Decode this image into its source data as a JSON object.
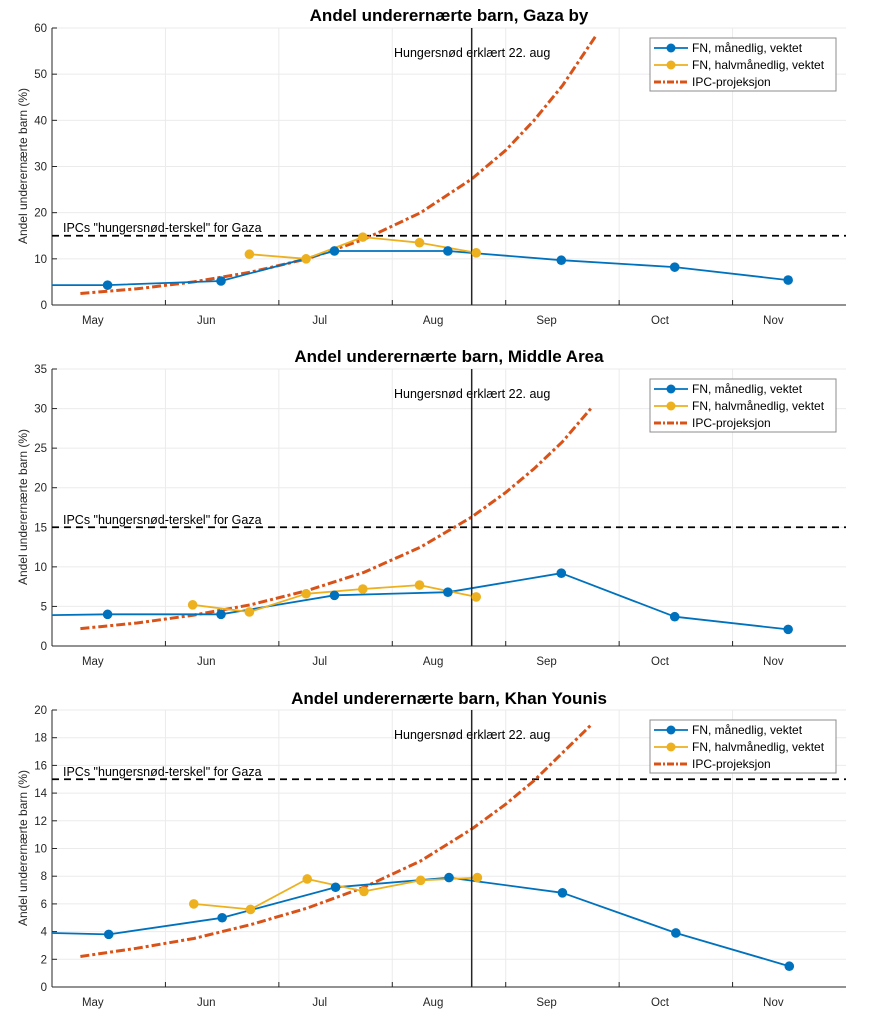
{
  "figure": {
    "xaxis_months": [
      "May",
      "Jun",
      "Jul",
      "Aug",
      "Sep",
      "Oct",
      "Nov"
    ],
    "xaxis_note": "x values are months elapsed since 1 May (0 = 1 May, 7 = 1 Dec); month tick labels sit at mid-month",
    "colors": {
      "monthly": "#0072BD",
      "halfmonthly": "#EDB120",
      "projection": "#D95319",
      "threshold": "#000000",
      "vline": "#262626",
      "grid": "#ebebeb",
      "axis": "#262626"
    }
  },
  "chart_data": [
    {
      "type": "line",
      "title": "Andel underernærte barn, Gaza by",
      "xlabel": "",
      "ylabel": "Andel underernærte barn (%)",
      "ylim": [
        0,
        60
      ],
      "yticks": [
        0,
        10,
        20,
        30,
        40,
        50,
        60
      ],
      "xlim": [
        0,
        7
      ],
      "xtick_labels": [
        "May",
        "Jun",
        "Jul",
        "Aug",
        "Sep",
        "Oct",
        "Nov"
      ],
      "grid": true,
      "legend_position": "top-right",
      "threshold": {
        "value": 15,
        "label": "IPCs \"hungersnød-terskel\" for Gaza"
      },
      "vline": {
        "x": 3.7,
        "label": "Hungersnød erklært 22. aug"
      },
      "series": [
        {
          "name": "FN, månedlig, vektet",
          "style": "line-marker",
          "x": [
            0,
            0.49,
            1.49,
            2.49,
            3.49,
            4.49,
            5.49,
            6.49
          ],
          "y": [
            4.3,
            4.3,
            5.2,
            11.7,
            11.7,
            9.7,
            8.2,
            5.4
          ],
          "marker_from_index": 1
        },
        {
          "name": "FN, halvmånedlig, vektet",
          "style": "line-marker",
          "x": [
            1.74,
            2.24,
            2.74,
            3.24,
            3.74
          ],
          "y": [
            11.0,
            10.0,
            14.7,
            13.5,
            11.3
          ],
          "marker_from_index": 0
        },
        {
          "name": "IPC-projeksjon",
          "style": "dash-dot",
          "x": [
            0.25,
            0.75,
            1.25,
            1.75,
            2.25,
            2.75,
            3.25,
            3.7,
            4.0,
            4.25,
            4.5,
            4.8
          ],
          "y": [
            2.5,
            3.5,
            5.0,
            7.1,
            10.0,
            14.2,
            20.0,
            27.3,
            33.5,
            40.0,
            47.5,
            58.5
          ]
        }
      ]
    },
    {
      "type": "line",
      "title": "Andel underernærte barn, Middle Area",
      "xlabel": "",
      "ylabel": "Andel underernærte barn (%)",
      "ylim": [
        0,
        35
      ],
      "yticks": [
        0,
        5,
        10,
        15,
        20,
        25,
        30,
        35
      ],
      "xlim": [
        0,
        7
      ],
      "xtick_labels": [
        "May",
        "Jun",
        "Jul",
        "Aug",
        "Sep",
        "Oct",
        "Nov"
      ],
      "grid": true,
      "legend_position": "top-right",
      "threshold": {
        "value": 15,
        "label": "IPCs \"hungersnød-terskel\" for Gaza"
      },
      "vline": {
        "x": 3.7,
        "label": "Hungersnød erklært 22. aug"
      },
      "series": [
        {
          "name": "FN, månedlig, vektet",
          "style": "line-marker",
          "x": [
            0,
            0.49,
            1.49,
            2.49,
            3.49,
            4.49,
            5.49,
            6.49
          ],
          "y": [
            3.9,
            4.0,
            4.0,
            6.4,
            6.8,
            9.2,
            3.7,
            2.1
          ],
          "marker_from_index": 1
        },
        {
          "name": "FN, halvmånedlig, vektet",
          "style": "line-marker",
          "x": [
            1.24,
            1.74,
            2.24,
            2.74,
            3.24,
            3.74
          ],
          "y": [
            5.2,
            4.3,
            6.6,
            7.2,
            7.7,
            6.2
          ],
          "marker_from_index": 0
        },
        {
          "name": "IPC-projeksjon",
          "style": "dash-dot",
          "x": [
            0.25,
            0.75,
            1.25,
            1.75,
            2.25,
            2.75,
            3.25,
            3.7,
            4.0,
            4.25,
            4.5,
            4.75
          ],
          "y": [
            2.2,
            2.9,
            3.9,
            5.2,
            7.0,
            9.3,
            12.5,
            16.3,
            19.4,
            22.4,
            25.8,
            30.0
          ]
        }
      ]
    },
    {
      "type": "line",
      "title": "Andel underernærte barn, Khan Younis",
      "xlabel": "",
      "ylabel": "Andel underernærte barn (%)",
      "ylim": [
        0,
        20
      ],
      "yticks": [
        0,
        2,
        4,
        6,
        8,
        10,
        12,
        14,
        16,
        18,
        20
      ],
      "xlim": [
        0,
        7
      ],
      "xtick_labels": [
        "May",
        "Jun",
        "Jul",
        "Aug",
        "Sep",
        "Oct",
        "Nov"
      ],
      "grid": true,
      "legend_position": "top-right",
      "threshold": {
        "value": 15,
        "label": "IPCs \"hungersnød-terskel\" for Gaza"
      },
      "vline": {
        "x": 3.7,
        "label": "Hungersnød erklært 22. aug"
      },
      "series": [
        {
          "name": "FN, månedlig, vektet",
          "style": "line-marker",
          "x": [
            0,
            0.5,
            1.5,
            2.5,
            3.5,
            4.5,
            5.5,
            6.5
          ],
          "y": [
            3.9,
            3.8,
            5.0,
            7.2,
            7.9,
            6.8,
            3.9,
            1.5
          ],
          "marker_from_index": 1
        },
        {
          "name": "FN, halvmånedlig, vektet",
          "style": "line-marker",
          "x": [
            1.25,
            1.75,
            2.25,
            2.75,
            3.25,
            3.75
          ],
          "y": [
            6.0,
            5.6,
            7.8,
            6.9,
            7.7,
            7.9
          ],
          "marker_from_index": 0
        },
        {
          "name": "IPC-projeksjon",
          "style": "dash-dot",
          "x": [
            0.25,
            0.75,
            1.25,
            1.75,
            2.25,
            2.75,
            3.25,
            3.7,
            4.0,
            4.25,
            4.5,
            4.75
          ],
          "y": [
            2.2,
            2.8,
            3.5,
            4.5,
            5.7,
            7.2,
            9.1,
            11.4,
            13.2,
            14.9,
            16.9,
            18.9
          ]
        }
      ]
    }
  ]
}
